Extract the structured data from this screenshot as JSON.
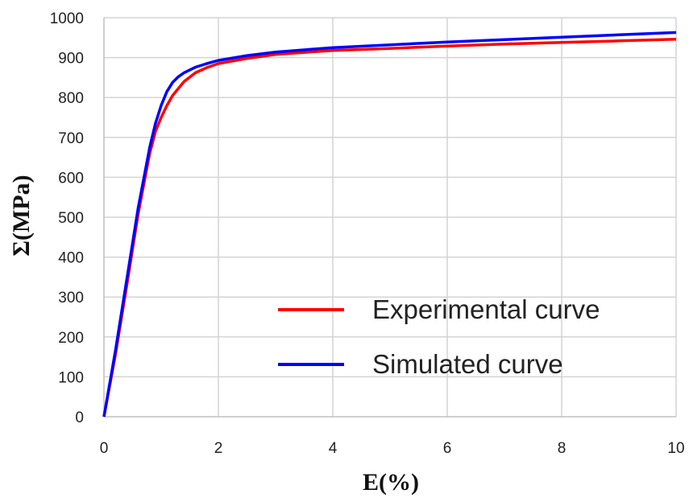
{
  "chart_data": {
    "type": "line",
    "xlabel": "E(%)",
    "ylabel": "Σ(MPa)",
    "xlim": [
      0,
      10
    ],
    "ylim": [
      0,
      1000
    ],
    "x_ticks": [
      "0",
      "2",
      "4",
      "6",
      "8",
      "10"
    ],
    "y_ticks": [
      "0",
      "100",
      "200",
      "300",
      "400",
      "500",
      "600",
      "700",
      "800",
      "900",
      "1000"
    ],
    "grid": true,
    "legend_position": "bottom-right",
    "series": [
      {
        "name": "Experimental curve",
        "color": "#ff0000",
        "x": [
          0,
          0.2,
          0.4,
          0.6,
          0.8,
          0.9,
          1.0,
          1.1,
          1.2,
          1.4,
          1.6,
          1.8,
          2.0,
          2.5,
          3,
          4,
          5,
          6,
          7,
          8,
          9,
          10
        ],
        "y": [
          0,
          155,
          330,
          510,
          660,
          715,
          750,
          780,
          805,
          840,
          862,
          875,
          885,
          898,
          908,
          918,
          923,
          929,
          934,
          938,
          942,
          946
        ]
      },
      {
        "name": "Simulated curve",
        "color": "#0000ff",
        "x": [
          0,
          0.2,
          0.4,
          0.6,
          0.8,
          0.9,
          1.0,
          1.1,
          1.2,
          1.3,
          1.4,
          1.6,
          1.8,
          2.0,
          2.5,
          3,
          4,
          5,
          6,
          7,
          8,
          9,
          10
        ],
        "y": [
          0,
          165,
          345,
          525,
          675,
          735,
          780,
          815,
          838,
          852,
          862,
          876,
          885,
          893,
          905,
          914,
          925,
          932,
          939,
          945,
          951,
          957,
          963
        ]
      }
    ]
  }
}
